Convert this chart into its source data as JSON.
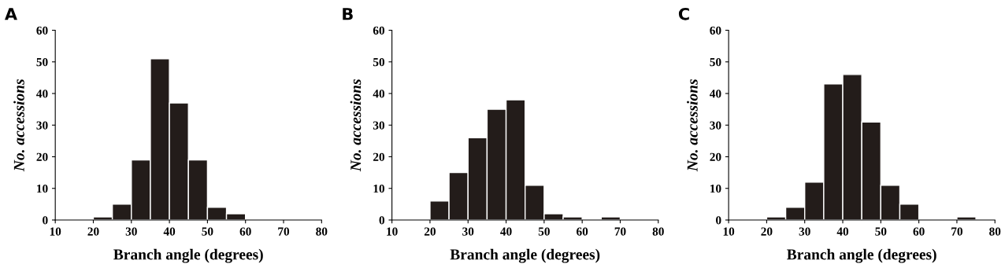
{
  "chart_data": [
    {
      "type": "histogram",
      "title": "A",
      "xlabel": "Branch angle (degrees)",
      "ylabel": "No. accessions",
      "color": "#231c1a",
      "bins": [
        20,
        25,
        30,
        35,
        40,
        45,
        50,
        55,
        60
      ],
      "values": [
        1,
        5,
        19,
        51,
        37,
        19,
        4,
        2
      ],
      "xlim": [
        10,
        80
      ],
      "xticks": [
        10,
        20,
        30,
        40,
        50,
        60,
        70,
        80
      ],
      "ylim": [
        0,
        60
      ],
      "yticks": [
        0,
        10,
        20,
        30,
        40,
        50,
        60
      ],
      "grid": false
    },
    {
      "type": "histogram",
      "title": "B",
      "xlabel": "Branch angle (degrees)",
      "ylabel": "No. accessions",
      "color": "#231c1a",
      "bins": [
        20,
        25,
        30,
        35,
        40,
        45,
        50,
        55,
        60,
        65,
        70
      ],
      "values": [
        6,
        15,
        26,
        35,
        38,
        11,
        2,
        1,
        0,
        1
      ],
      "xlim": [
        10,
        80
      ],
      "xticks": [
        10,
        20,
        30,
        40,
        50,
        60,
        70,
        80
      ],
      "ylim": [
        0,
        60
      ],
      "yticks": [
        0,
        10,
        20,
        30,
        40,
        50,
        60
      ],
      "grid": false
    },
    {
      "type": "histogram",
      "title": "C",
      "xlabel": "Branch angle (degrees)",
      "ylabel": "No. accessions",
      "color": "#231c1a",
      "bins": [
        20,
        25,
        30,
        35,
        40,
        45,
        50,
        55,
        60,
        65,
        70,
        75
      ],
      "values": [
        1,
        4,
        12,
        43,
        46,
        31,
        11,
        5,
        0,
        0,
        1
      ],
      "xlim": [
        10,
        80
      ],
      "xticks": [
        10,
        20,
        30,
        40,
        50,
        60,
        70,
        80
      ],
      "ylim": [
        0,
        60
      ],
      "yticks": [
        0,
        10,
        20,
        30,
        40,
        50,
        60
      ],
      "grid": false
    }
  ]
}
